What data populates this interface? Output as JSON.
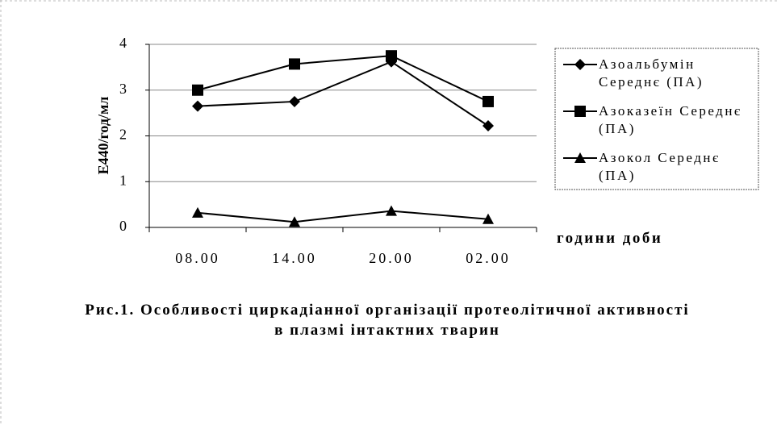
{
  "chart_data": {
    "type": "line",
    "caption": "Рис.1. Особливості циркадіанної організації протеолітичної активності в плазмі інтактних тварин",
    "ylabel": "Е440/год/мл",
    "xlabel": "години доби",
    "categories": [
      "08.00",
      "14.00",
      "20.00",
      "02.00"
    ],
    "series": [
      {
        "name": "Азоальбумін Середнє (ПА)",
        "color": "#000000",
        "marker": "diamond",
        "values": [
          2.65,
          2.75,
          3.62,
          2.22
        ]
      },
      {
        "name": "Азоказеїн Середнє (ПА)",
        "color": "#000000",
        "marker": "square",
        "values": [
          3.0,
          3.57,
          3.75,
          2.75
        ]
      },
      {
        "name": "Азокол Середнє (ПА)",
        "color": "#000000",
        "marker": "triangle",
        "values": [
          0.32,
          0.12,
          0.36,
          0.18
        ]
      }
    ],
    "ylim": [
      0,
      4
    ],
    "yticks": [
      0,
      1,
      2,
      3,
      4
    ],
    "grid": true,
    "legend": "right"
  }
}
